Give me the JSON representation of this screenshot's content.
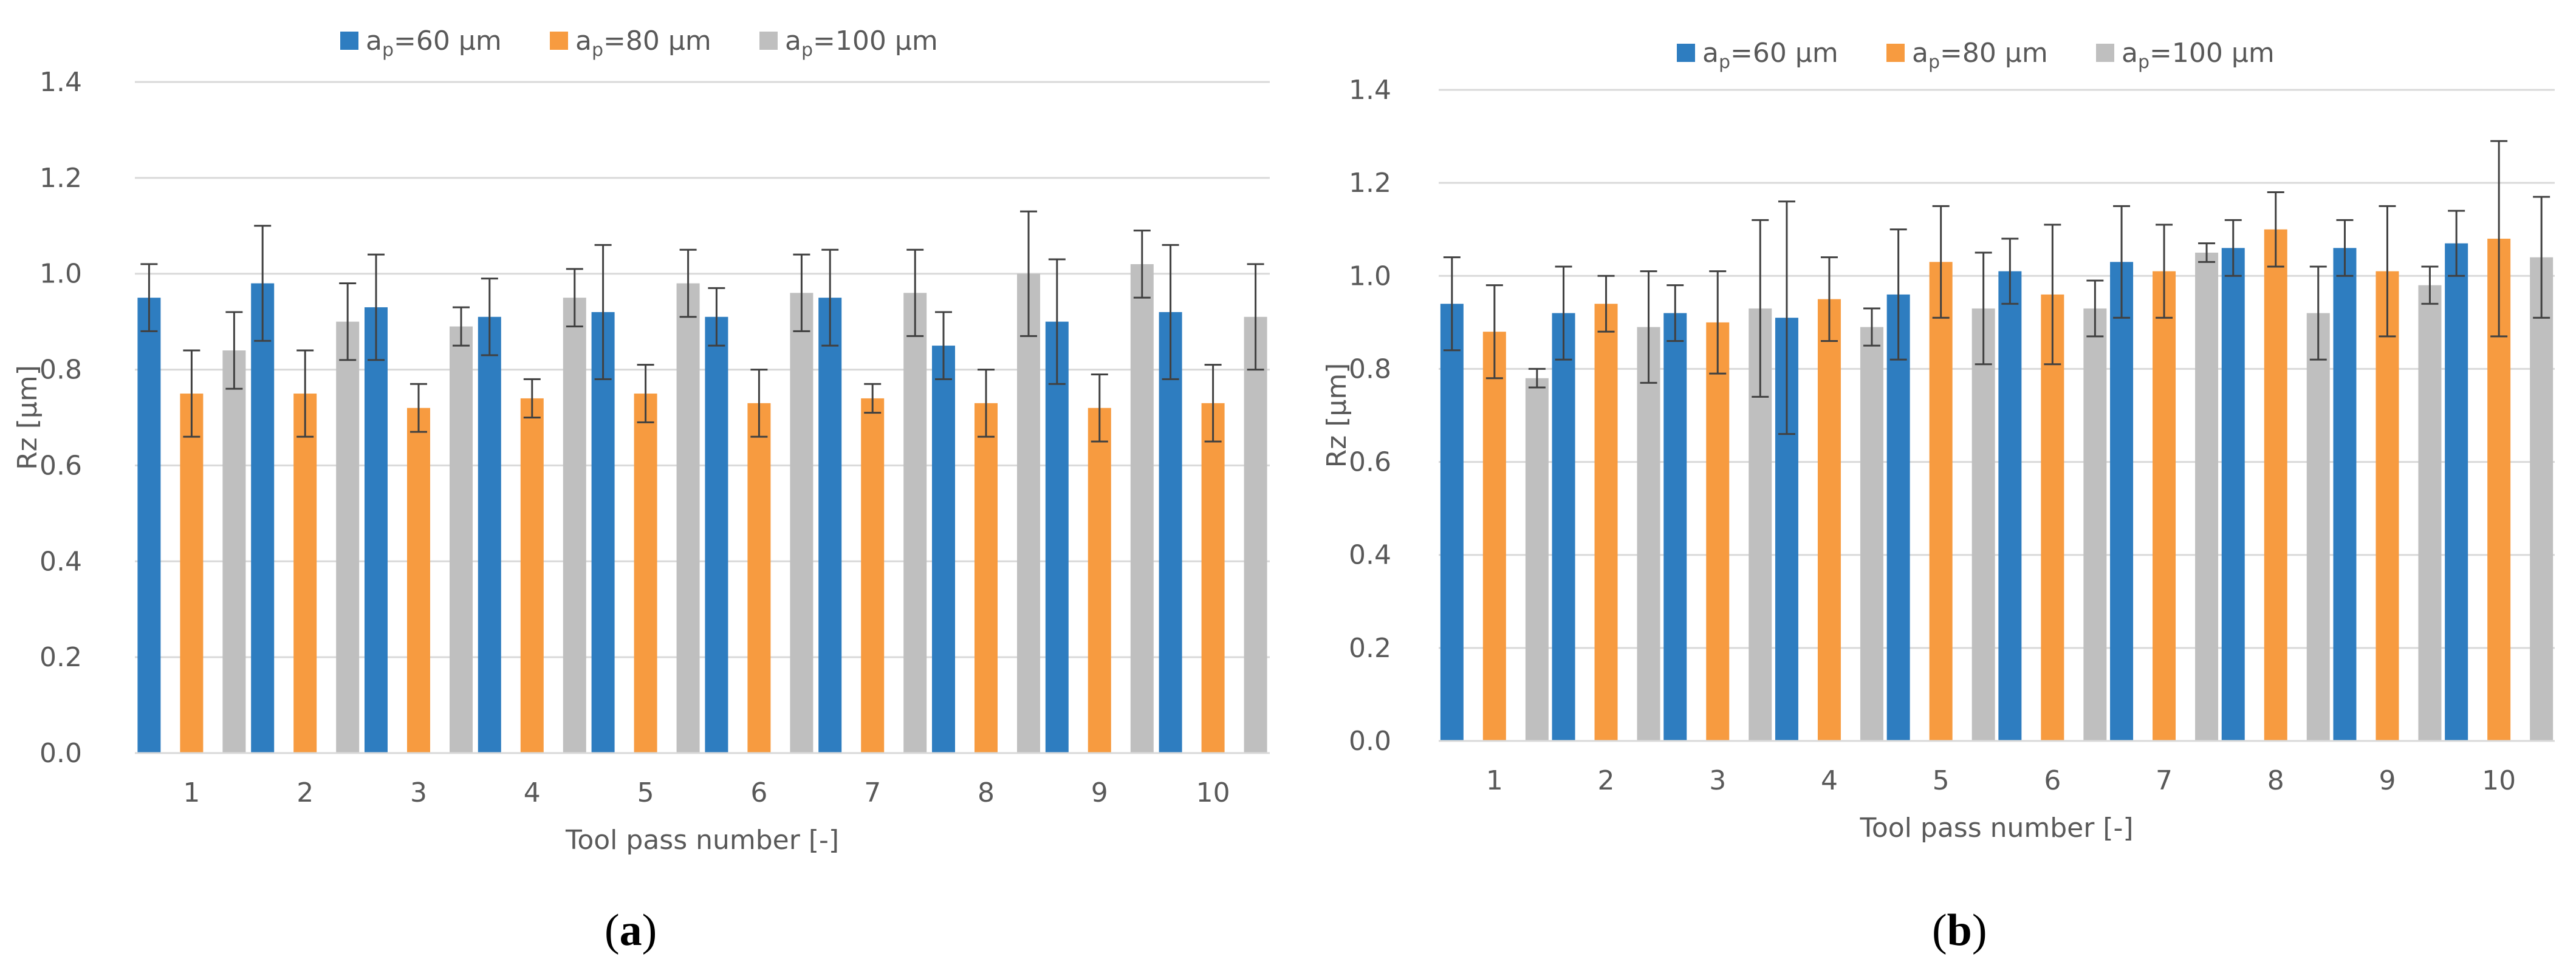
{
  "colors": {
    "series1": "#2E7DC0",
    "series2": "#F79B40",
    "series3": "#BFBFBF",
    "grid": "#D9D9D9",
    "error": "#404040"
  },
  "chart_data": [
    {
      "type": "bar",
      "panel_caption": {
        "open": "(",
        "letter": "a",
        "close": ")"
      },
      "categories": [
        "1",
        "2",
        "3",
        "4",
        "5",
        "6",
        "7",
        "8",
        "9",
        "10"
      ],
      "xlabel": "Tool pass number [-]",
      "ylabel": "Rz [µm]",
      "ylim": [
        0,
        1.4
      ],
      "yticks": [
        "0.0",
        "0.2",
        "0.4",
        "0.6",
        "0.8",
        "1.0",
        "1.2",
        "1.4"
      ],
      "grid": true,
      "legend_position": "top",
      "series": [
        {
          "name_main": "a",
          "name_sub": "p",
          "name_rest": "=60 µm",
          "values": [
            0.95,
            0.98,
            0.93,
            0.91,
            0.92,
            0.91,
            0.95,
            0.85,
            0.9,
            0.92
          ],
          "errors": [
            0.07,
            0.12,
            0.11,
            0.08,
            0.14,
            0.06,
            0.1,
            0.07,
            0.13,
            0.14
          ]
        },
        {
          "name_main": "a",
          "name_sub": "p",
          "name_rest": "=80 µm",
          "values": [
            0.75,
            0.75,
            0.72,
            0.74,
            0.75,
            0.73,
            0.74,
            0.73,
            0.72,
            0.73
          ],
          "errors": [
            0.09,
            0.09,
            0.05,
            0.04,
            0.06,
            0.07,
            0.03,
            0.07,
            0.07,
            0.08
          ]
        },
        {
          "name_main": "a",
          "name_sub": "p",
          "name_rest": "=100 µm",
          "values": [
            0.84,
            0.9,
            0.89,
            0.95,
            0.98,
            0.96,
            0.96,
            1.0,
            1.02,
            0.91
          ],
          "errors": [
            0.08,
            0.08,
            0.04,
            0.06,
            0.07,
            0.08,
            0.09,
            0.13,
            0.07,
            0.11
          ]
        }
      ]
    },
    {
      "type": "bar",
      "panel_caption": {
        "open": "(",
        "letter": "b",
        "close": ")"
      },
      "categories": [
        "1",
        "2",
        "3",
        "4",
        "5",
        "6",
        "7",
        "8",
        "9",
        "10"
      ],
      "xlabel": "Tool pass number [-]",
      "ylabel": "Rz [µm]",
      "ylim": [
        0,
        1.4
      ],
      "yticks": [
        "0.0",
        "0.2",
        "0.4",
        "0.6",
        "0.8",
        "1.0",
        "1.2",
        "1.4"
      ],
      "grid": true,
      "legend_position": "top",
      "series": [
        {
          "name_main": "a",
          "name_sub": "p",
          "name_rest": "=60 µm",
          "values": [
            0.94,
            0.92,
            0.92,
            0.91,
            0.96,
            1.01,
            1.03,
            1.06,
            1.06,
            1.07
          ],
          "errors": [
            0.1,
            0.1,
            0.06,
            0.25,
            0.14,
            0.07,
            0.12,
            0.06,
            0.06,
            0.07
          ]
        },
        {
          "name_main": "a",
          "name_sub": "p",
          "name_rest": "=80 µm",
          "values": [
            0.88,
            0.94,
            0.9,
            0.95,
            1.03,
            0.96,
            1.01,
            1.1,
            1.01,
            1.08
          ],
          "errors": [
            0.1,
            0.06,
            0.11,
            0.09,
            0.12,
            0.15,
            0.1,
            0.08,
            0.14,
            0.21
          ]
        },
        {
          "name_main": "a",
          "name_sub": "p",
          "name_rest": "=100 µm",
          "values": [
            0.78,
            0.89,
            0.93,
            0.89,
            0.93,
            0.93,
            1.05,
            0.92,
            0.98,
            1.04
          ],
          "errors": [
            0.02,
            0.12,
            0.19,
            0.04,
            0.12,
            0.06,
            0.02,
            0.1,
            0.04,
            0.13
          ]
        }
      ]
    }
  ]
}
